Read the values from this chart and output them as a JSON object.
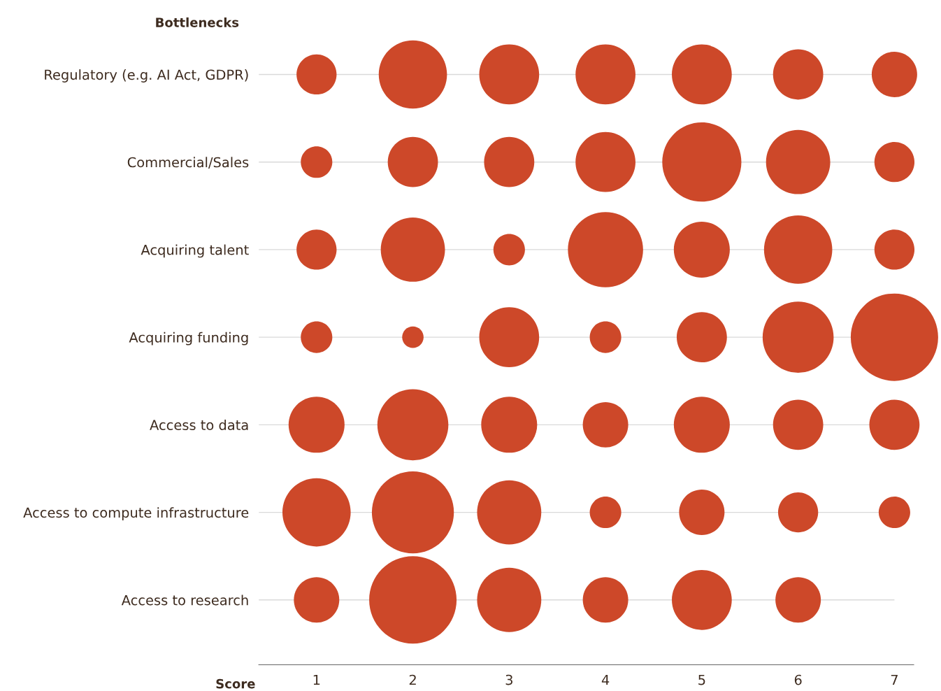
{
  "chart_data": {
    "type": "bubble",
    "orientation": "horizontal",
    "xlabel": "Score",
    "ylabel": "Bottlenecks",
    "xlim": [
      0.4,
      7.2
    ],
    "xticks": [
      1,
      2,
      3,
      4,
      5,
      6,
      7
    ],
    "grid": "y",
    "legend": false,
    "categories": [
      "Regulatory (e.g. AI Act, GDPR)",
      "Commercial/Sales",
      "Acquiring talent",
      "Acquiring funding",
      "Access to data",
      "Access to compute infrastructure",
      "Access to research"
    ],
    "series": [
      {
        "color": "#cd4829",
        "values": [
          1,
          1,
          1,
          1,
          1,
          1,
          1
        ],
        "sizes": [
          0.21,
          0.13,
          0.21,
          0.13,
          0.41,
          0.61,
          0.27
        ]
      },
      {
        "color": "#cd4829",
        "values": [
          2,
          2,
          2,
          2,
          2,
          2,
          2
        ],
        "sizes": [
          0.61,
          0.33,
          0.54,
          0.06,
          0.66,
          0.88,
          1
        ]
      },
      {
        "color": "#cd4829",
        "values": [
          3,
          3,
          3,
          3,
          3,
          3,
          3
        ],
        "sizes": [
          0.47,
          0.33,
          0.13,
          0.47,
          0.41,
          0.54,
          0.54
        ]
      },
      {
        "color": "#cd4829",
        "values": [
          4,
          4,
          4,
          4,
          4,
          4,
          4
        ],
        "sizes": [
          0.47,
          0.47,
          0.74,
          0.13,
          0.27,
          0.13,
          0.27
        ]
      },
      {
        "color": "#cd4829",
        "values": [
          5,
          5,
          5,
          5,
          5,
          5,
          5
        ],
        "sizes": [
          0.47,
          0.82,
          0.41,
          0.33,
          0.41,
          0.27,
          0.47
        ]
      },
      {
        "color": "#cd4829",
        "values": [
          6,
          6,
          6,
          6,
          6,
          6,
          6
        ],
        "sizes": [
          0.33,
          0.54,
          0.61,
          0.66,
          0.33,
          0.21,
          0.27
        ]
      },
      {
        "color": "#cd4829",
        "values": [
          7,
          7,
          7,
          7,
          7,
          7,
          null
        ],
        "sizes": [
          0.27,
          0.21,
          0.21,
          1,
          0.33,
          0.13,
          null
        ]
      }
    ]
  }
}
